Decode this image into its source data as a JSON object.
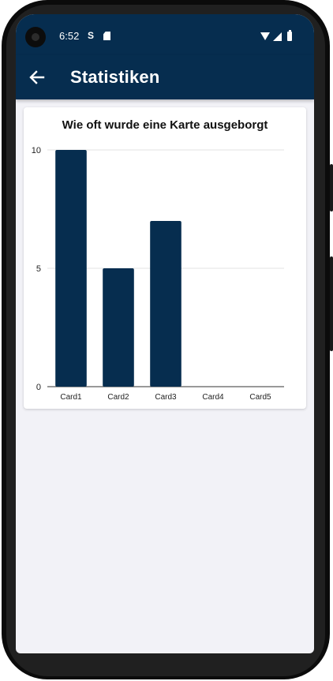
{
  "status_bar": {
    "time": "6:52",
    "icons": [
      "s-app-icon",
      "sd-card-icon",
      "wifi-icon",
      "signal-icon",
      "battery-icon"
    ]
  },
  "app_bar": {
    "title": "Statistiken",
    "back_icon": "arrow-left-icon",
    "background": "#062d4f"
  },
  "chart_data": {
    "type": "bar",
    "title": "Wie oft wurde eine Karte ausgeborgt",
    "categories": [
      "Card1",
      "Card2",
      "Card3",
      "Card4",
      "Card5"
    ],
    "values": [
      10,
      5,
      7,
      0,
      0
    ],
    "ylim": [
      0,
      10
    ],
    "yticks": [
      0,
      5,
      10
    ],
    "xlabel": "",
    "ylabel": "",
    "grid": true,
    "bar_color": "#062d4f"
  }
}
